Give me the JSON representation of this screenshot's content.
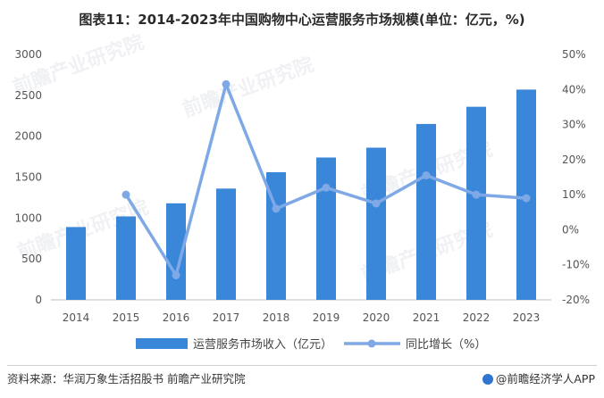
{
  "title": "图表11：2014-2023年中国购物中心运营服务市场规模(单位：亿元，%)",
  "source": "资料来源：华润万象生活招股书 前瞻产业研究院",
  "logo_text": "@前瞻经济学人APP",
  "watermark": "前瞻产业研究院",
  "colors": {
    "bar": "#3a86d9",
    "line": "#7ea9e6"
  },
  "chart_data": {
    "type": "bar+line",
    "categories": [
      "2014",
      "2015",
      "2016",
      "2017",
      "2018",
      "2019",
      "2020",
      "2021",
      "2022",
      "2023"
    ],
    "series": [
      {
        "name": "运营服务市场收入（亿元）",
        "type": "bar",
        "axis": "left",
        "values": [
          890,
          1020,
          1180,
          1360,
          1560,
          1740,
          1860,
          2150,
          2360,
          2570
        ]
      },
      {
        "name": "同比增长（%）",
        "type": "line",
        "axis": "right",
        "values": [
          null,
          10,
          -13,
          41.5,
          6,
          12,
          7.5,
          15.5,
          10,
          9
        ]
      }
    ],
    "y_left": {
      "ticks": [
        "0",
        "500",
        "1000",
        "1500",
        "2000",
        "2500",
        "3000"
      ],
      "range": [
        0,
        3000
      ]
    },
    "y_right": {
      "ticks": [
        "-20%",
        "-10%",
        "0%",
        "10%",
        "20%",
        "30%",
        "40%",
        "50%"
      ],
      "range": [
        -20,
        50
      ]
    },
    "legend_position": "bottom",
    "grid": false
  }
}
